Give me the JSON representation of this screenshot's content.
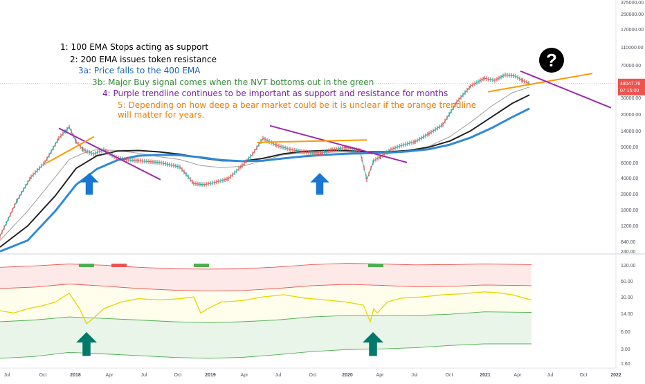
{
  "chart_data": {
    "type": "line",
    "title": "",
    "price_panel": {
      "scale": "log",
      "ylim": [
        650,
        400000
      ],
      "y_ticks": [
        "375000.00",
        "250000.00",
        "170000.00",
        "110000.00",
        "70000.00",
        "48000.00",
        "30000.00",
        "20000.00",
        "14000.00",
        "9000.00",
        "6000.00",
        "4000.00",
        "2800.00",
        "1800.00",
        "1200.00",
        "840.00"
      ],
      "last_price": "48047.76",
      "countdown": "07:15:00",
      "series": [
        {
          "role": "price",
          "color": "#26a69a",
          "x": [
            0,
            25,
            45,
            65,
            85,
            100,
            110,
            120,
            135,
            150,
            165,
            180,
            200,
            230,
            260,
            280,
            295,
            310,
            330,
            350,
            365,
            380,
            400,
            420,
            440,
            460,
            480,
            500,
            520,
            530,
            540,
            550,
            565,
            580,
            600,
            620,
            640,
            660,
            680,
            700,
            715,
            730,
            745,
            755,
            765
          ],
          "values": [
            1000,
            2500,
            4500,
            6500,
            12000,
            16000,
            11000,
            9000,
            8000,
            9000,
            7500,
            7000,
            6800,
            6500,
            5800,
            3800,
            3700,
            3900,
            4300,
            6000,
            8000,
            12000,
            10000,
            9000,
            8500,
            8000,
            9000,
            9500,
            8800,
            4200,
            6800,
            7500,
            9000,
            10000,
            11000,
            13500,
            17000,
            30000,
            45000,
            55000,
            52000,
            60000,
            58000,
            52000,
            48000
          ]
        },
        {
          "role": "100 EMA",
          "color": "#9e9e9e",
          "x": [
            0,
            40,
            80,
            100,
            120,
            140,
            170,
            200,
            230,
            260,
            290,
            320,
            350,
            380,
            410,
            440,
            470,
            500,
            530,
            560,
            590,
            620,
            650,
            680,
            710,
            740,
            765
          ],
          "values": [
            900,
            1900,
            4500,
            7000,
            8200,
            9000,
            8800,
            8200,
            7500,
            7000,
            6000,
            5700,
            5900,
            6800,
            7900,
            8300,
            8400,
            8500,
            8200,
            8200,
            8600,
            9800,
            12500,
            18000,
            27000,
            38000,
            44000
          ]
        },
        {
          "role": "200 EMA",
          "color": "#212121",
          "x": [
            0,
            40,
            80,
            110,
            140,
            170,
            200,
            230,
            260,
            290,
            320,
            350,
            380,
            410,
            440,
            470,
            500,
            530,
            560,
            590,
            620,
            650,
            680,
            710,
            740,
            765
          ],
          "values": [
            760,
            1300,
            2800,
            5600,
            7700,
            8700,
            8800,
            8500,
            8000,
            7300,
            6800,
            6700,
            7200,
            8100,
            8600,
            8800,
            8800,
            8500,
            8500,
            8800,
            9600,
            11200,
            14500,
            20500,
            29000,
            36000
          ]
        },
        {
          "role": "400 EMA",
          "color": "#2f89d6",
          "x": [
            0,
            40,
            80,
            110,
            140,
            170,
            200,
            230,
            260,
            290,
            320,
            350,
            380,
            410,
            440,
            470,
            500,
            530,
            560,
            590,
            620,
            650,
            680,
            710,
            740,
            765
          ],
          "values": [
            680,
            900,
            1900,
            3700,
            5500,
            6900,
            7700,
            7900,
            7800,
            7400,
            6900,
            6700,
            6800,
            7200,
            7600,
            7900,
            8100,
            8200,
            8300,
            8600,
            9100,
            10200,
            12200,
            15500,
            20500,
            25500
          ]
        }
      ]
    },
    "nvt_panel": {
      "scale": "log",
      "ylim": [
        1.4,
        270
      ],
      "y_ticks": [
        "240.00",
        "120.00",
        "60.00",
        "30.00",
        "14.00",
        "6.00",
        "3.00",
        "1.60"
      ],
      "series": [
        {
          "role": "upper band",
          "color": "#ef5350",
          "x": [
            0,
            50,
            100,
            150,
            200,
            250,
            300,
            350,
            400,
            450,
            500,
            550,
            600,
            650,
            700,
            768
          ],
          "values": [
            150,
            160,
            175,
            165,
            150,
            140,
            138,
            140,
            152,
            170,
            180,
            175,
            168,
            170,
            175,
            170
          ]
        },
        {
          "role": "upper middle band",
          "color": "#ef5350",
          "x": [
            0,
            50,
            100,
            150,
            200,
            250,
            300,
            350,
            400,
            450,
            500,
            550,
            600,
            650,
            700,
            768
          ],
          "values": [
            56,
            60,
            69,
            63,
            56,
            52,
            50,
            51,
            56,
            64,
            68,
            65,
            61,
            62,
            66,
            64
          ]
        },
        {
          "role": "lower middle band",
          "color": "#4caf50",
          "x": [
            0,
            50,
            100,
            150,
            200,
            250,
            300,
            350,
            400,
            450,
            500,
            550,
            600,
            650,
            700,
            768
          ],
          "values": [
            12,
            13,
            15,
            14,
            13,
            12,
            11.5,
            12,
            13,
            15,
            16,
            16,
            16,
            17,
            19,
            18.5
          ]
        },
        {
          "role": "lower band",
          "color": "#4caf50",
          "x": [
            0,
            50,
            100,
            150,
            200,
            250,
            300,
            350,
            400,
            450,
            500,
            550,
            600,
            650,
            700,
            768
          ],
          "values": [
            2.2,
            2.4,
            2.9,
            2.7,
            2.5,
            2.3,
            2.2,
            2.3,
            2.6,
            3.0,
            3.3,
            3.4,
            3.6,
            4.0,
            4.3,
            4.3
          ]
        },
        {
          "role": "NVT",
          "color": "#e6d500",
          "x": [
            0,
            20,
            40,
            60,
            80,
            100,
            115,
            125,
            135,
            150,
            175,
            200,
            230,
            260,
            280,
            290,
            300,
            320,
            350,
            380,
            410,
            440,
            470,
            500,
            525,
            535,
            540,
            545,
            560,
            580,
            610,
            640,
            670,
            700,
            720,
            740,
            768
          ],
          "values": [
            20,
            18,
            22,
            25,
            30,
            45,
            22,
            11,
            14,
            22,
            30,
            35,
            33,
            35,
            38,
            18,
            22,
            30,
            32,
            38,
            42,
            36,
            33,
            30,
            26,
            12,
            22,
            18,
            30,
            36,
            38,
            42,
            44,
            48,
            46,
            42,
            33
          ]
        }
      ],
      "signal_markers": [
        {
          "x": 125,
          "color": "#4caf50"
        },
        {
          "x": 172,
          "color": "#ef5350"
        },
        {
          "x": 291,
          "color": "#4caf50"
        },
        {
          "x": 543,
          "color": "#4caf50"
        }
      ]
    },
    "x_axis": {
      "labels": [
        "Jul",
        "Oct",
        "2018",
        "Apr",
        "Jul",
        "Oct",
        "2019",
        "Apr",
        "Jul",
        "Oct",
        "2020",
        "Apr",
        "Jul",
        "Oct",
        "2021",
        "Apr",
        "Jul",
        "Oct",
        "2022"
      ],
      "positions": [
        10,
        62,
        109,
        158,
        208,
        257,
        304,
        353,
        402,
        452,
        502,
        549,
        599,
        649,
        701,
        748,
        795,
        843,
        890
      ]
    },
    "trendlines": [
      {
        "color": "#9c27b0",
        "from": [
          85,
          15500
        ],
        "to": [
          232,
          4200
        ]
      },
      {
        "color": "#ff9800",
        "from": [
          67,
          6400
        ],
        "to": [
          136,
          12500
        ]
      },
      {
        "color": "#9c27b0",
        "from": [
          390,
          16500
        ],
        "to": [
          588,
          6500
        ]
      },
      {
        "color": "#ff9800",
        "from": [
          372,
          10800
        ],
        "to": [
          530,
          11500
        ]
      },
      {
        "color": "#ff9800",
        "from": [
          705,
          39000
        ],
        "to": [
          856,
          62000
        ]
      },
      {
        "color": "#9c27b0",
        "from": [
          752,
          66000
        ],
        "to": [
          883,
          26000
        ]
      }
    ],
    "annotations": [
      {
        "text": "1: 100 EMA Stops acting as support",
        "color": "#000000"
      },
      {
        "text": "2: 200 EMA issues token resistance",
        "color": "#000000"
      },
      {
        "text": "3a: Price falls to the 400 EMA",
        "color": "#1565c0"
      },
      {
        "text": "3b: Major Buy signal comes when the NVT bottoms out in the green",
        "color": "#388e3c"
      },
      {
        "text": "4: Purple  trendline continues to be important as support and resistance for months",
        "color": "#7b1fa2"
      },
      {
        "text": "5: Depending on how deep a bear market could be it is unclear if the orange trendline",
        "color": "#f57c00"
      },
      {
        "text": "will matter for years.",
        "color": "#f57c00"
      }
    ],
    "arrow_icons": [
      {
        "name": "blue-up-arrow-icon",
        "panel": "price",
        "color": "#1976d2",
        "x": 129
      },
      {
        "name": "blue-up-arrow-icon",
        "panel": "price",
        "color": "#1976d2",
        "x": 462
      },
      {
        "name": "green-up-arrow-icon",
        "panel": "nvt",
        "color": "#00796b",
        "x": 125
      },
      {
        "name": "green-up-arrow-icon",
        "panel": "nvt",
        "color": "#00796b",
        "x": 539
      }
    ],
    "question_icon": {
      "name": "question-mark-icon",
      "glyph": "?"
    },
    "grid": false,
    "legend": "none"
  }
}
